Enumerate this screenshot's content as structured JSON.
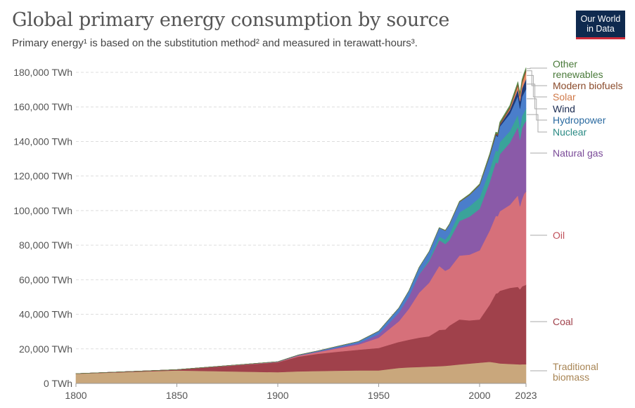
{
  "header": {
    "title": "Global primary energy consumption by source",
    "subtitle": "Primary energy¹ is based on the substitution method² and measured in terawatt-hours³."
  },
  "logo": {
    "line1": "Our World",
    "line2": "in Data",
    "bg": "#0f2a4f",
    "accent": "#ce2b3a"
  },
  "chart_data": {
    "type": "area",
    "stacked": true,
    "x": [
      1800,
      1850,
      1900,
      1910,
      1920,
      1930,
      1940,
      1950,
      1960,
      1965,
      1970,
      1975,
      1980,
      1983,
      1985,
      1990,
      1995,
      2000,
      2005,
      2008,
      2009,
      2010,
      2015,
      2019,
      2020,
      2021,
      2022,
      2023
    ],
    "ylim": [
      0,
      180000
    ],
    "yticks": [
      {
        "value": 0,
        "label": "0 TWh"
      },
      {
        "value": 20000,
        "label": "20,000 TWh"
      },
      {
        "value": 40000,
        "label": "40,000 TWh"
      },
      {
        "value": 60000,
        "label": "60,000 TWh"
      },
      {
        "value": 80000,
        "label": "80,000 TWh"
      },
      {
        "value": 100000,
        "label": "100,000 TWh"
      },
      {
        "value": 120000,
        "label": "120,000 TWh"
      },
      {
        "value": 140000,
        "label": "140,000 TWh"
      },
      {
        "value": 160000,
        "label": "160,000 TWh"
      },
      {
        "value": 180000,
        "label": "180,000 TWh"
      }
    ],
    "xticks": [
      {
        "value": 1800,
        "label": "1800"
      },
      {
        "value": 1850,
        "label": "1850"
      },
      {
        "value": 1900,
        "label": "1900"
      },
      {
        "value": 1950,
        "label": "1950"
      },
      {
        "value": 2000,
        "label": "2000"
      },
      {
        "value": 2023,
        "label": "2023"
      }
    ],
    "grid": true,
    "legend_position": "right",
    "series": [
      {
        "name": "Traditional biomass",
        "color": "#c9a77c",
        "label_color": "#a88555",
        "label_lines": [
          "Traditional",
          "biomass"
        ],
        "values": [
          5600,
          7500,
          6500,
          7000,
          7200,
          7400,
          7500,
          7500,
          9000,
          9300,
          9500,
          9800,
          10000,
          10200,
          10400,
          11000,
          11500,
          12000,
          12500,
          12000,
          11800,
          11600,
          11300,
          11100,
          11000,
          11100,
          11100,
          11100
        ]
      },
      {
        "name": "Coal",
        "color": "#a0414b",
        "label_color": "#a0414b",
        "label_lines": [
          "Coal"
        ],
        "values": [
          100,
          500,
          5700,
          8500,
          10000,
          11000,
          12000,
          13000,
          15000,
          16000,
          17000,
          17500,
          21000,
          21000,
          23000,
          26000,
          25000,
          25000,
          33000,
          40000,
          40500,
          42000,
          44000,
          44800,
          43500,
          45000,
          45500,
          46000
        ]
      },
      {
        "name": "Oil",
        "color": "#d6707a",
        "label_color": "#c0505a",
        "label_lines": [
          "Oil"
        ],
        "values": [
          0,
          0,
          200,
          500,
          1000,
          2000,
          3000,
          6000,
          12000,
          18000,
          26000,
          31000,
          37000,
          34000,
          33000,
          37000,
          38000,
          40000,
          43000,
          45000,
          44500,
          46000,
          48000,
          53000,
          48000,
          50500,
          53000,
          54000
        ]
      },
      {
        "name": "Natural gas",
        "color": "#8a5aa8",
        "label_color": "#7a4a98",
        "label_lines": [
          "Natural gas"
        ],
        "values": [
          0,
          0,
          100,
          200,
          300,
          500,
          800,
          2000,
          5000,
          7000,
          10500,
          12500,
          15000,
          15500,
          16500,
          20000,
          22000,
          24000,
          28000,
          31000,
          30500,
          33000,
          36000,
          39500,
          38500,
          41000,
          40500,
          41000
        ]
      },
      {
        "name": "Nuclear",
        "color": "#3aa39a",
        "label_color": "#2a8a84",
        "label_lines": [
          "Nuclear"
        ],
        "values": [
          0,
          0,
          0,
          0,
          0,
          0,
          0,
          0,
          10,
          50,
          200,
          1000,
          2000,
          2500,
          3500,
          5000,
          6000,
          6500,
          7000,
          7000,
          6900,
          7000,
          6700,
          7100,
          6900,
          7100,
          6800,
          7000
        ]
      },
      {
        "name": "Hydropower",
        "color": "#4a7ecb",
        "label_color": "#2a6aa0",
        "label_lines": [
          "Hydropower"
        ],
        "values": [
          0,
          0,
          100,
          200,
          400,
          700,
          1000,
          1800,
          2700,
          3300,
          3900,
          4500,
          5000,
          5200,
          5500,
          6000,
          6500,
          7200,
          8000,
          8500,
          8600,
          9000,
          10000,
          11000,
          11200,
          11100,
          11200,
          11200
        ]
      },
      {
        "name": "Wind",
        "color": "#1e3a78",
        "label_color": "#1a2a50",
        "label_lines": [
          "Wind"
        ],
        "values": [
          0,
          0,
          0,
          0,
          0,
          0,
          0,
          0,
          0,
          0,
          0,
          0,
          0,
          0,
          0,
          10,
          20,
          80,
          250,
          550,
          700,
          900,
          2200,
          3700,
          4200,
          4700,
          5300,
          5800
        ]
      },
      {
        "name": "Solar",
        "color": "#e58c65",
        "label_color": "#d07a4a",
        "label_lines": [
          "Solar"
        ],
        "values": [
          0,
          0,
          0,
          0,
          0,
          0,
          0,
          0,
          0,
          0,
          0,
          0,
          0,
          0,
          0,
          0,
          0,
          0,
          10,
          30,
          50,
          90,
          700,
          2200,
          2700,
          3100,
          3700,
          4200
        ]
      },
      {
        "name": "Modern biofuels",
        "color": "#8a4a2a",
        "label_color": "#8a4a2a",
        "label_lines": [
          "Modern biofuels"
        ],
        "values": [
          0,
          0,
          0,
          0,
          0,
          0,
          0,
          0,
          0,
          0,
          0,
          0,
          100,
          120,
          150,
          200,
          250,
          300,
          500,
          700,
          750,
          800,
          1000,
          1100,
          1000,
          1100,
          1200,
          1200
        ]
      },
      {
        "name": "Other renewables",
        "color": "#5a8a4a",
        "label_color": "#4a7a3a",
        "label_lines": [
          "Other",
          "renewables"
        ],
        "values": [
          0,
          0,
          0,
          0,
          0,
          0,
          0,
          0,
          20,
          30,
          50,
          80,
          100,
          120,
          150,
          200,
          300,
          400,
          600,
          700,
          750,
          800,
          1000,
          1100,
          1100,
          1150,
          1200,
          1200
        ]
      }
    ]
  }
}
